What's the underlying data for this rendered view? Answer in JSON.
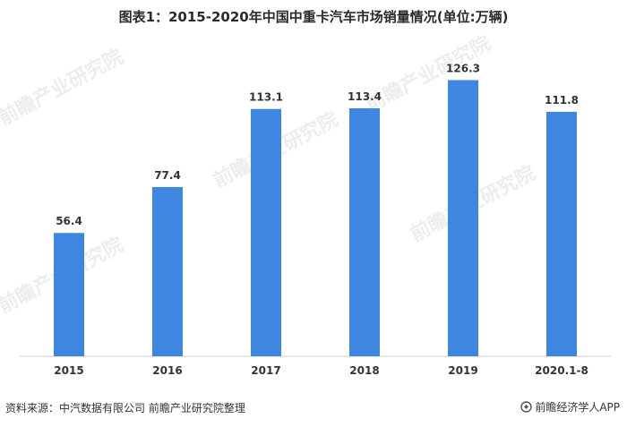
{
  "title": "图表1：2015-2020年中国中重卡汽车市场销量情况(单位:万辆)",
  "source": "资料来源：中汽数据有限公司 前瞻产业研究院整理",
  "brand": "前瞻经济学人APP",
  "watermark": "前瞻产业研究院",
  "colors": {
    "bar": "#3f86e0",
    "axis": "#cccccc",
    "label": "#333333"
  },
  "chart_data": {
    "type": "bar",
    "categories": [
      "2015",
      "2016",
      "2017",
      "2018",
      "2019",
      "2020.1-8"
    ],
    "values": [
      56.4,
      77.4,
      113.1,
      113.4,
      126.3,
      111.8
    ],
    "data_labels": [
      "56.4",
      "77.4",
      "113.1",
      "113.4",
      "126.3",
      "111.8"
    ],
    "title": "图表1：2015-2020年中国中重卡汽车市场销量情况(单位:万辆)",
    "xlabel": "",
    "ylabel": "",
    "ylim": [
      0,
      131
    ],
    "grid": false,
    "legend": "none"
  }
}
